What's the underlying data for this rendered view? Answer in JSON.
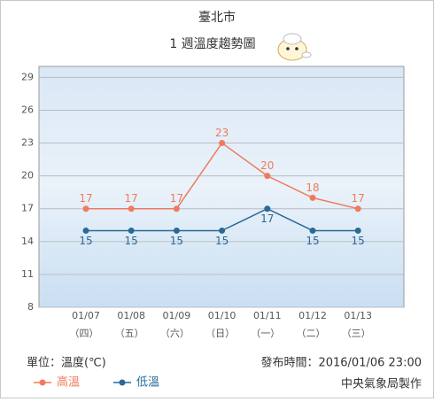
{
  "chart_data": {
    "type": "line",
    "title": "臺北市",
    "subtitle": "1 週溫度趨勢圖",
    "categories": [
      "01/07",
      "01/08",
      "01/09",
      "01/10",
      "01/11",
      "01/12",
      "01/13"
    ],
    "weekdays": [
      "（四）",
      "（五）",
      "（六）",
      "（日）",
      "（一）",
      "（二）",
      "（三）"
    ],
    "series": [
      {
        "name": "高溫",
        "color": "#f07a5e",
        "values": [
          17,
          17,
          17,
          23,
          20,
          18,
          17
        ]
      },
      {
        "name": "低溫",
        "color": "#2a6a96",
        "values": [
          15,
          15,
          15,
          15,
          17,
          15,
          15
        ]
      }
    ],
    "ylim": [
      8,
      30
    ],
    "yticks": [
      8,
      11,
      14,
      17,
      20,
      23,
      26,
      29
    ],
    "grid": true,
    "unit": "單位：溫度(℃)",
    "published": "發布時間：2016/01/06 23:00",
    "credit": "中央氣象局製作"
  }
}
